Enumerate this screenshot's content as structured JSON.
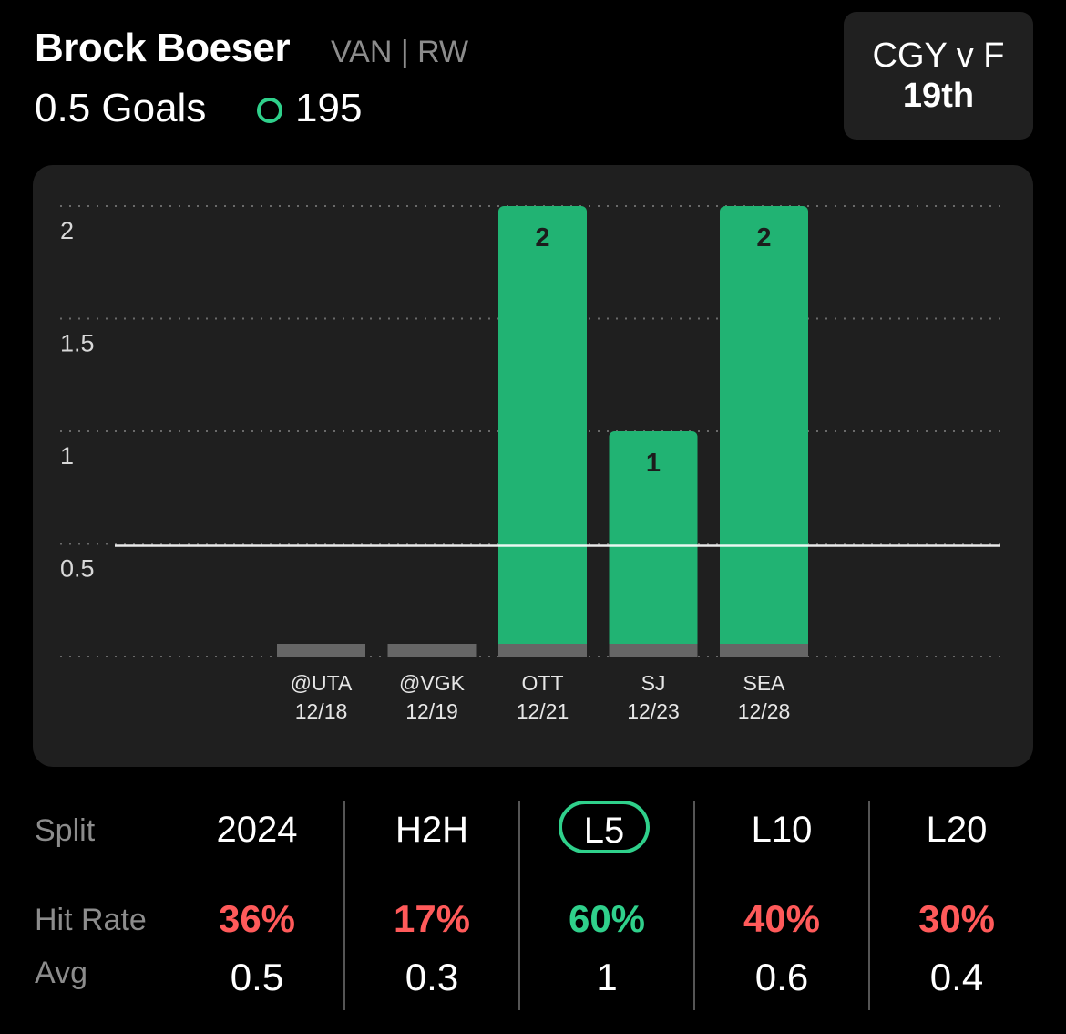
{
  "player": {
    "name": "Brock Boeser",
    "meta": "VAN | RW",
    "prop_line": "0.5 Goals",
    "count": "195"
  },
  "matchup": {
    "title": "CGY v F",
    "rank": "19th"
  },
  "colors": {
    "hit": "#21b373",
    "miss": "#666666",
    "accent": "#2fd08b",
    "negative": "#ff5a5a",
    "positive": "#2fd08b"
  },
  "chart_data": {
    "type": "bar",
    "categories": [
      "@UTA 12/18",
      "@VGK 12/19",
      "OTT 12/21",
      "SJ 12/23",
      "SEA 12/28"
    ],
    "opponents": [
      "@UTA",
      "@VGK",
      "OTT",
      "SJ",
      "SEA"
    ],
    "dates": [
      "12/18",
      "12/19",
      "12/21",
      "12/23",
      "12/28"
    ],
    "values": [
      0,
      0,
      2,
      1,
      2
    ],
    "value_labels": [
      "",
      "",
      "2",
      "1",
      "2"
    ],
    "yticks": [
      "2",
      "1.5",
      "1",
      "0.5"
    ],
    "ytick_values": [
      2,
      1.5,
      1,
      0.5
    ],
    "ylim": [
      0,
      2
    ],
    "threshold": 0.5,
    "grid": true
  },
  "stats": {
    "labels": {
      "split": "Split",
      "hit_rate": "Hit Rate",
      "avg": "Avg"
    },
    "columns": [
      {
        "split": "2024",
        "hit_rate": "36%",
        "hit_good": false,
        "avg": "0.5",
        "selected": false
      },
      {
        "split": "H2H",
        "hit_rate": "17%",
        "hit_good": false,
        "avg": "0.3",
        "selected": false
      },
      {
        "split": "L5",
        "hit_rate": "60%",
        "hit_good": true,
        "avg": "1",
        "selected": true
      },
      {
        "split": "L10",
        "hit_rate": "40%",
        "hit_good": false,
        "avg": "0.6",
        "selected": false
      },
      {
        "split": "L20",
        "hit_rate": "30%",
        "hit_good": false,
        "avg": "0.4",
        "selected": false
      }
    ]
  }
}
